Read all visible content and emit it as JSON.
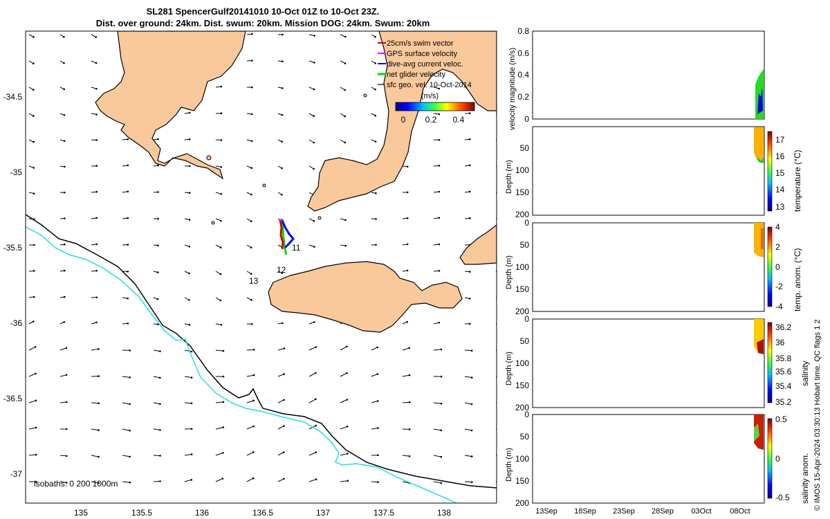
{
  "title": {
    "line1": "SL281 SpencerGulf20141010 10-Oct 01Z to 10-Oct 23Z.",
    "line2": "Dist. over ground: 24km. Dist. swum: 20km. Mission DOG: 24km. Swum: 20km"
  },
  "map": {
    "x_ticks": [
      "135",
      "135.5",
      "136",
      "136.5",
      "137",
      "137.5",
      "138"
    ],
    "y_ticks": [
      "-34.5",
      "-35",
      "-35.5",
      "-36",
      "-36.5",
      "-37"
    ],
    "isobath_label": "isobaths: 0   200  1000m",
    "day_labels": [
      "11",
      "12",
      "13"
    ],
    "land_color": "#f9c89b",
    "legend": {
      "items": [
        {
          "label": "25cm/s swim vector",
          "color": "#d40000"
        },
        {
          "label": "GPS surface velocity",
          "color": "#ff00ff"
        },
        {
          "label": "dive-avg current veloc.",
          "color": "#0000ff"
        },
        {
          "label": "net glider velocity",
          "color": "#00dd00"
        },
        {
          "label": "sfc geo. vel. 10-Oct-2014",
          "color": "#000000"
        }
      ],
      "colorbar_unit": "(m/s)",
      "colorbar_ticks": [
        "0",
        "0.2",
        "0.4"
      ]
    }
  },
  "panels": {
    "velocity": {
      "ylabel": "velocity magnitude (m/s)",
      "y_ticks": [
        "0.8",
        "0.6",
        "0.4",
        "0.2",
        "0"
      ]
    },
    "depth_ylabel": "Depth (m)",
    "depth_ticks": [
      "0",
      "50",
      "100",
      "150",
      "200"
    ],
    "temperature": {
      "cbar_label": "temperature (°C)",
      "cbar_ticks": [
        "17",
        "16",
        "15",
        "14",
        "13"
      ]
    },
    "temp_anom": {
      "cbar_label": "temp. anom. (°C)",
      "cbar_ticks": [
        "4",
        "2",
        "0",
        "-2",
        "-4"
      ]
    },
    "salinity": {
      "cbar_label": "salinity",
      "cbar_ticks": [
        "36.2",
        "36",
        "35.8",
        "35.6",
        "35.4",
        "35.2"
      ]
    },
    "sal_anom": {
      "cbar_label": "salinity anom.",
      "cbar_ticks": [
        "0.5",
        "0",
        "-0.5"
      ]
    },
    "time_ticks": [
      "13Sep",
      "18Sep",
      "23Sep",
      "28Sep",
      "03Oct",
      "08Oct"
    ]
  },
  "footer": "© IMOS 15-Apr-2024 03:30:13 Hobart time. QC flags 1  2"
}
